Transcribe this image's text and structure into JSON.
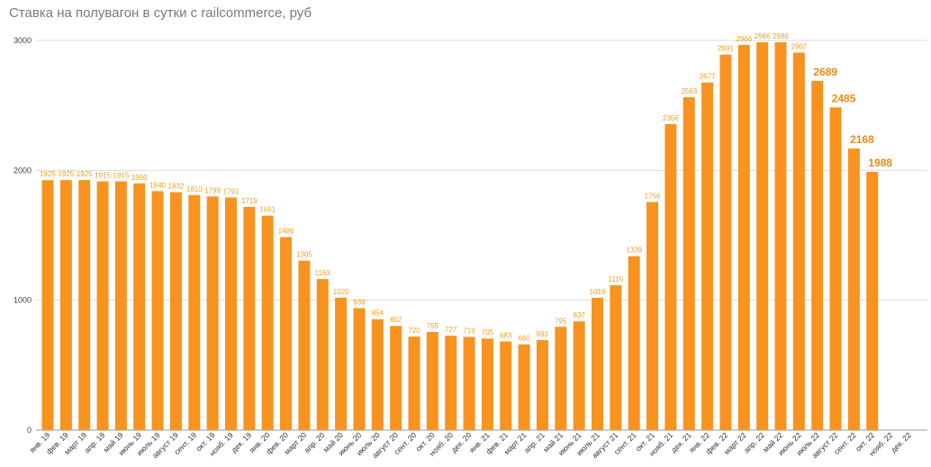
{
  "chart_data": {
    "type": "bar",
    "title": "Ставка на полувагон в сутки с railcommerce, руб",
    "xlabel": "",
    "ylabel": "",
    "ylim": [
      0,
      3000
    ],
    "yticks": [
      0,
      1000,
      2000,
      3000
    ],
    "grid": true,
    "bar_color": "#f7931e",
    "categories": [
      "янв. 19",
      "фев. 19",
      "март 19",
      "апр. 19",
      "май 19",
      "июнь 19",
      "июль 19",
      "август 19",
      "сент. 19",
      "окт. 19",
      "нояб. 19",
      "дек. 19",
      "янв. 20",
      "фев. 20",
      "март 20",
      "апр. 20",
      "май 20",
      "июнь 20",
      "июль 20",
      "август 20",
      "сент. 20",
      "окт. 20",
      "нояб. 20",
      "дек. 20",
      "янв. 21",
      "фев. 21",
      "март 21",
      "апр. 21",
      "май 21",
      "июнь 21",
      "июль 21",
      "август 21",
      "сент. 21",
      "окт. 21",
      "нояб. 21",
      "дек. 21",
      "янв. 22",
      "фев. 22",
      "март 22",
      "апр. 22",
      "май 22",
      "июнь 22",
      "июль 22",
      "август 22",
      "сент. 22",
      "окт. 22",
      "нояб. 22",
      "дек. 22"
    ],
    "values": [
      1925,
      1925,
      1925,
      1915,
      1915,
      1900,
      1840,
      1832,
      1810,
      1799,
      1791,
      1719,
      1651,
      1486,
      1305,
      1163,
      1020,
      939,
      854,
      802,
      720,
      755,
      727,
      718,
      705,
      683,
      660,
      693,
      795,
      837,
      1019,
      1115,
      1339,
      1756,
      2356,
      2563,
      2677,
      2891,
      2966,
      2986,
      2986,
      2907,
      2689,
      2485,
      2168,
      1988,
      null,
      null
    ],
    "labels": [
      "1925",
      "1925",
      "1925",
      "1915",
      "1915",
      "1900",
      "1840",
      "1832",
      "1810",
      "1799",
      "1791",
      "1719",
      "1651",
      "1486",
      "1305",
      "1163",
      "1020",
      "939",
      "854",
      "802",
      "720",
      "755",
      "727",
      "718",
      "705",
      "683",
      "660",
      "693",
      "795",
      "837",
      "1019",
      "1115",
      "1339",
      "1756",
      "2356",
      "2563",
      "2677",
      "2891",
      "2966",
      "2986",
      "2986",
      "2907",
      "2689",
      "2485",
      "2168",
      "1988",
      "",
      ""
    ],
    "emphasized_labels_from_index": 42
  }
}
